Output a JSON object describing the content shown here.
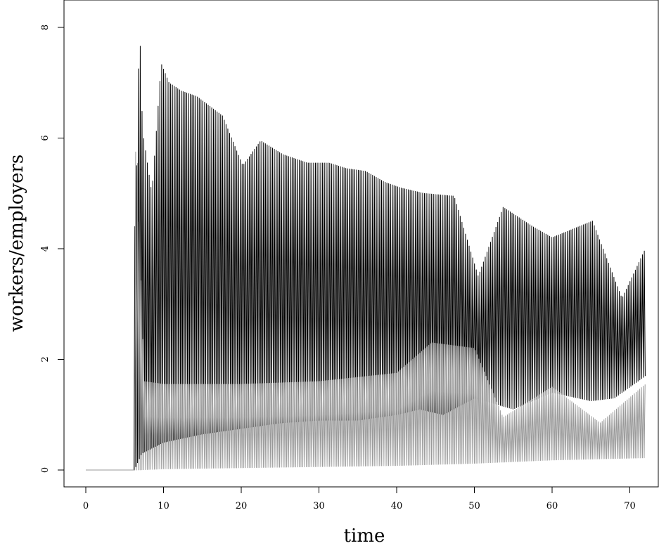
{
  "chart_data": {
    "type": "line",
    "title": "",
    "xlabel": "time",
    "ylabel": "workers/employers",
    "xlim": [
      0,
      72
    ],
    "ylim": [
      0,
      8
    ],
    "x_ticks": [
      0,
      10,
      20,
      30,
      40,
      50,
      60,
      70
    ],
    "y_ticks": [
      0,
      2,
      4,
      6,
      8
    ],
    "x_tick_labels": [
      "0",
      "10",
      "20",
      "30",
      "40",
      "50",
      "60",
      "70"
    ],
    "y_tick_labels": [
      "0",
      "2",
      "4",
      "6",
      "8"
    ],
    "grid": false,
    "legend": "none",
    "series": [
      {
        "color": "#000000",
        "style": "oscillation",
        "onset": 6.2,
        "end": 72,
        "period": 0.23,
        "peaks": [
          [
            6.4,
            4.4
          ],
          [
            6.9,
            8.2
          ],
          [
            7.3,
            6.15
          ],
          [
            8.5,
            5.0
          ],
          [
            9.7,
            7.35
          ],
          [
            10.7,
            7.0
          ],
          [
            12.3,
            6.85
          ],
          [
            14.3,
            6.75
          ],
          [
            17.6,
            6.4
          ],
          [
            20.2,
            5.5
          ],
          [
            22.5,
            5.95
          ],
          [
            25.4,
            5.7
          ],
          [
            28.5,
            5.55
          ],
          [
            31.3,
            5.55
          ],
          [
            33.5,
            5.45
          ],
          [
            36.0,
            5.4
          ],
          [
            38.5,
            5.2
          ],
          [
            40.5,
            5.1
          ],
          [
            43.5,
            5.0
          ],
          [
            47.4,
            4.95
          ],
          [
            50.5,
            3.5
          ],
          [
            53.7,
            4.75
          ],
          [
            57.5,
            4.4
          ],
          [
            60.0,
            4.2
          ],
          [
            65.2,
            4.5
          ],
          [
            69.0,
            3.1
          ],
          [
            72.0,
            4.0
          ]
        ],
        "troughs": [
          [
            6.4,
            0.05
          ],
          [
            7.2,
            0.3
          ],
          [
            10.0,
            0.5
          ],
          [
            15.0,
            0.65
          ],
          [
            20.0,
            0.75
          ],
          [
            25.0,
            0.85
          ],
          [
            30.0,
            0.9
          ],
          [
            35.0,
            0.9
          ],
          [
            40.0,
            1.0
          ],
          [
            43.0,
            1.1
          ],
          [
            46.0,
            1.0
          ],
          [
            50.0,
            1.3
          ],
          [
            55.0,
            1.1
          ],
          [
            60.0,
            1.4
          ],
          [
            65.0,
            1.25
          ],
          [
            68.0,
            1.3
          ],
          [
            72.0,
            1.7
          ]
        ]
      },
      {
        "color": "#9a9a9a",
        "style": "oscillation",
        "onset": 6.3,
        "end": 72,
        "period": 0.23,
        "peaks": [
          [
            6.6,
            5.75
          ],
          [
            7.5,
            1.6
          ],
          [
            10.0,
            1.55
          ],
          [
            20.0,
            1.55
          ],
          [
            30.0,
            1.6
          ],
          [
            40.0,
            1.75
          ],
          [
            44.5,
            2.3
          ],
          [
            50.0,
            2.2
          ],
          [
            53.7,
            0.95
          ],
          [
            60.0,
            1.5
          ],
          [
            66.2,
            0.85
          ],
          [
            72.0,
            1.55
          ]
        ],
        "troughs": [
          [
            6.6,
            0.0
          ],
          [
            10.0,
            0.02
          ],
          [
            20.0,
            0.04
          ],
          [
            30.0,
            0.06
          ],
          [
            40.0,
            0.08
          ],
          [
            50.0,
            0.12
          ],
          [
            60.0,
            0.18
          ],
          [
            72.0,
            0.22
          ]
        ]
      }
    ]
  }
}
